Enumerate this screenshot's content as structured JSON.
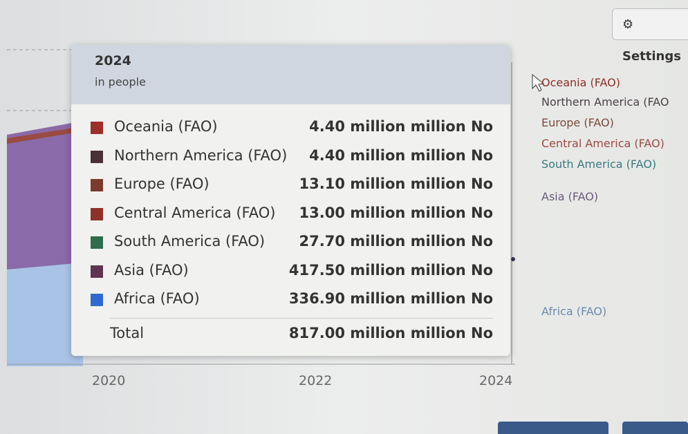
{
  "settings_button": "Settings",
  "tooltip": {
    "title": "2024",
    "subtitle": "in people",
    "rows": [
      {
        "name": "Oceania (FAO)",
        "value": "4.40 million million No",
        "color": "#9b2f2a"
      },
      {
        "name": "Northern America (FAO)",
        "value": "4.40 million million No",
        "color": "#4a3038"
      },
      {
        "name": "Europe (FAO)",
        "value": "13.10 million million No",
        "color": "#7a3a2c"
      },
      {
        "name": "Central America (FAO)",
        "value": "13.00 million million No",
        "color": "#8f3128"
      },
      {
        "name": "South America (FAO)",
        "value": "27.70 million million No",
        "color": "#2f6b4d"
      },
      {
        "name": "Asia (FAO)",
        "value": "417.50 million million No",
        "color": "#5e3450"
      },
      {
        "name": "Africa (FAO)",
        "value": "336.90 million million No",
        "color": "#2f6ad0"
      }
    ],
    "total": {
      "label": "Total",
      "value": "817.00 million million No"
    }
  },
  "legend": [
    {
      "label": "Oceania (FAO)",
      "color": "#8c2e2a"
    },
    {
      "label": "Northern America (FAO",
      "color": "#4a4048"
    },
    {
      "label": "Europe (FAO)",
      "color": "#7a4a3c"
    },
    {
      "label": "Central America (FAO)",
      "color": "#9a4a40"
    },
    {
      "label": "South America (FAO)",
      "color": "#3a7a80"
    },
    {
      "label": "Asia (FAO)",
      "color": "#6a5a78"
    },
    {
      "label": "Africa (FAO)",
      "color": "#6a8ab0"
    }
  ],
  "x_axis": [
    "2020",
    "2022",
    "2024"
  ]
}
